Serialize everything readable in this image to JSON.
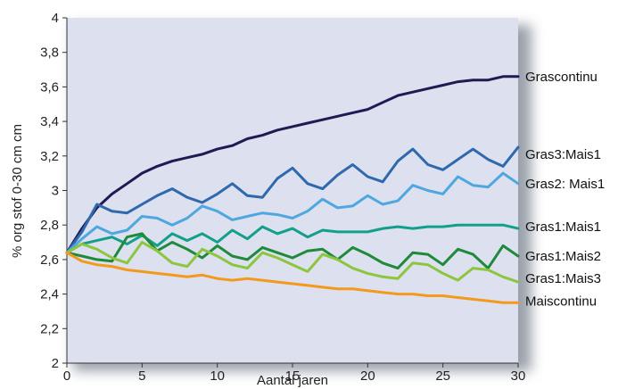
{
  "chart_data": {
    "type": "line",
    "xlabel": "Aantal jaren",
    "ylabel": "% org stof 0-30 cm cm",
    "xlim": [
      0,
      30
    ],
    "ylim": [
      2,
      4
    ],
    "xticks": [
      "0",
      "5",
      "10",
      "15",
      "20",
      "25",
      "30"
    ],
    "yticks": [
      "2",
      "2,2",
      "2,4",
      "2,6",
      "2,8",
      "3",
      "3,2",
      "3,4",
      "3,6",
      "3,8",
      "4"
    ],
    "grid": false,
    "background": "#dde0ee",
    "series": [
      {
        "name": "Grascontinu",
        "color": "#201a54",
        "x": [
          0,
          1,
          2,
          3,
          4,
          5,
          6,
          7,
          8,
          9,
          10,
          11,
          12,
          13,
          14,
          15,
          16,
          17,
          18,
          19,
          20,
          21,
          22,
          23,
          24,
          25,
          26,
          27,
          28,
          29,
          30
        ],
        "y": [
          2.64,
          2.78,
          2.9,
          2.98,
          3.04,
          3.1,
          3.14,
          3.17,
          3.19,
          3.21,
          3.24,
          3.26,
          3.3,
          3.32,
          3.35,
          3.37,
          3.39,
          3.41,
          3.43,
          3.45,
          3.47,
          3.51,
          3.55,
          3.57,
          3.59,
          3.61,
          3.63,
          3.64,
          3.64,
          3.66,
          3.66
        ]
      },
      {
        "name": "Gras3:Mais1",
        "color": "#2e68ad",
        "x": [
          0,
          1,
          2,
          3,
          4,
          5,
          6,
          7,
          8,
          9,
          10,
          11,
          12,
          13,
          14,
          15,
          16,
          17,
          18,
          19,
          20,
          21,
          22,
          23,
          24,
          25,
          26,
          27,
          28,
          29,
          30
        ],
        "y": [
          2.64,
          2.76,
          2.92,
          2.88,
          2.87,
          2.92,
          2.97,
          3.01,
          2.96,
          2.93,
          2.98,
          3.04,
          2.97,
          2.96,
          3.07,
          3.13,
          3.04,
          3.01,
          3.09,
          3.15,
          3.08,
          3.05,
          3.17,
          3.24,
          3.15,
          3.12,
          3.18,
          3.24,
          3.18,
          3.14,
          3.25
        ]
      },
      {
        "name": "Gras2: Mais1",
        "color": "#4ea8df",
        "x": [
          0,
          1,
          2,
          3,
          4,
          5,
          6,
          7,
          8,
          9,
          10,
          11,
          12,
          13,
          14,
          15,
          16,
          17,
          18,
          19,
          20,
          21,
          22,
          23,
          24,
          25,
          26,
          27,
          28,
          29,
          30
        ],
        "y": [
          2.64,
          2.72,
          2.79,
          2.75,
          2.77,
          2.85,
          2.84,
          2.8,
          2.84,
          2.91,
          2.88,
          2.83,
          2.85,
          2.87,
          2.86,
          2.84,
          2.88,
          2.95,
          2.9,
          2.91,
          2.97,
          2.92,
          2.94,
          3.03,
          3.0,
          2.98,
          3.08,
          3.03,
          3.02,
          3.1,
          3.04
        ]
      },
      {
        "name": "Gras1:Mais1",
        "color": "#13a08a",
        "x": [
          0,
          1,
          2,
          3,
          4,
          5,
          6,
          7,
          8,
          9,
          10,
          11,
          12,
          13,
          14,
          15,
          16,
          17,
          18,
          19,
          20,
          21,
          22,
          23,
          24,
          25,
          26,
          27,
          28,
          29,
          30
        ],
        "y": [
          2.64,
          2.69,
          2.71,
          2.73,
          2.69,
          2.74,
          2.68,
          2.75,
          2.71,
          2.75,
          2.7,
          2.77,
          2.72,
          2.79,
          2.75,
          2.78,
          2.73,
          2.77,
          2.76,
          2.76,
          2.76,
          2.78,
          2.79,
          2.78,
          2.79,
          2.79,
          2.8,
          2.8,
          2.8,
          2.8,
          2.78
        ]
      },
      {
        "name": "Gras1:Mais2",
        "color": "#1f8a3c",
        "x": [
          0,
          1,
          2,
          3,
          4,
          5,
          6,
          7,
          8,
          9,
          10,
          11,
          12,
          13,
          14,
          15,
          16,
          17,
          18,
          19,
          20,
          21,
          22,
          23,
          24,
          25,
          26,
          27,
          28,
          29,
          30
        ],
        "y": [
          2.64,
          2.62,
          2.6,
          2.59,
          2.73,
          2.75,
          2.65,
          2.7,
          2.66,
          2.61,
          2.68,
          2.62,
          2.6,
          2.67,
          2.64,
          2.61,
          2.65,
          2.66,
          2.6,
          2.67,
          2.63,
          2.58,
          2.55,
          2.64,
          2.63,
          2.57,
          2.66,
          2.63,
          2.55,
          2.68,
          2.62
        ]
      },
      {
        "name": "Gras1:Mais3",
        "color": "#8cc63f",
        "x": [
          0,
          1,
          2,
          3,
          4,
          5,
          6,
          7,
          8,
          9,
          10,
          11,
          12,
          13,
          14,
          15,
          16,
          17,
          18,
          19,
          20,
          21,
          22,
          23,
          24,
          25,
          26,
          27,
          28,
          29,
          30
        ],
        "y": [
          2.64,
          2.69,
          2.66,
          2.61,
          2.58,
          2.7,
          2.65,
          2.58,
          2.56,
          2.66,
          2.62,
          2.57,
          2.55,
          2.64,
          2.61,
          2.57,
          2.53,
          2.63,
          2.6,
          2.55,
          2.52,
          2.5,
          2.49,
          2.58,
          2.57,
          2.52,
          2.48,
          2.55,
          2.54,
          2.5,
          2.47
        ]
      },
      {
        "name": "Maiscontinu",
        "color": "#f39a1d",
        "x": [
          0,
          1,
          2,
          3,
          4,
          5,
          6,
          7,
          8,
          9,
          10,
          11,
          12,
          13,
          14,
          15,
          16,
          17,
          18,
          19,
          20,
          21,
          22,
          23,
          24,
          25,
          26,
          27,
          28,
          29,
          30
        ],
        "y": [
          2.64,
          2.59,
          2.57,
          2.56,
          2.54,
          2.53,
          2.52,
          2.51,
          2.5,
          2.51,
          2.49,
          2.48,
          2.49,
          2.48,
          2.47,
          2.46,
          2.45,
          2.44,
          2.43,
          2.43,
          2.42,
          2.41,
          2.4,
          2.4,
          2.39,
          2.39,
          2.38,
          2.37,
          2.36,
          2.35,
          2.35
        ]
      }
    ],
    "annotations": [
      {
        "text": "Grascontinu",
        "series": 0,
        "y": 3.66
      },
      {
        "text": "Gras3:Mais1",
        "series": 1,
        "y": 3.21
      },
      {
        "text": "Gras2: Mais1",
        "series": 2,
        "y": 3.04
      },
      {
        "text": "Gras1:Mais1",
        "series": 3,
        "y": 2.79
      },
      {
        "text": "Gras1:Mais2",
        "series": 4,
        "y": 2.62
      },
      {
        "text": "Gras1:Mais3",
        "series": 5,
        "y": 2.49
      },
      {
        "text": "Maiscontinu",
        "series": 6,
        "y": 2.36
      }
    ]
  }
}
